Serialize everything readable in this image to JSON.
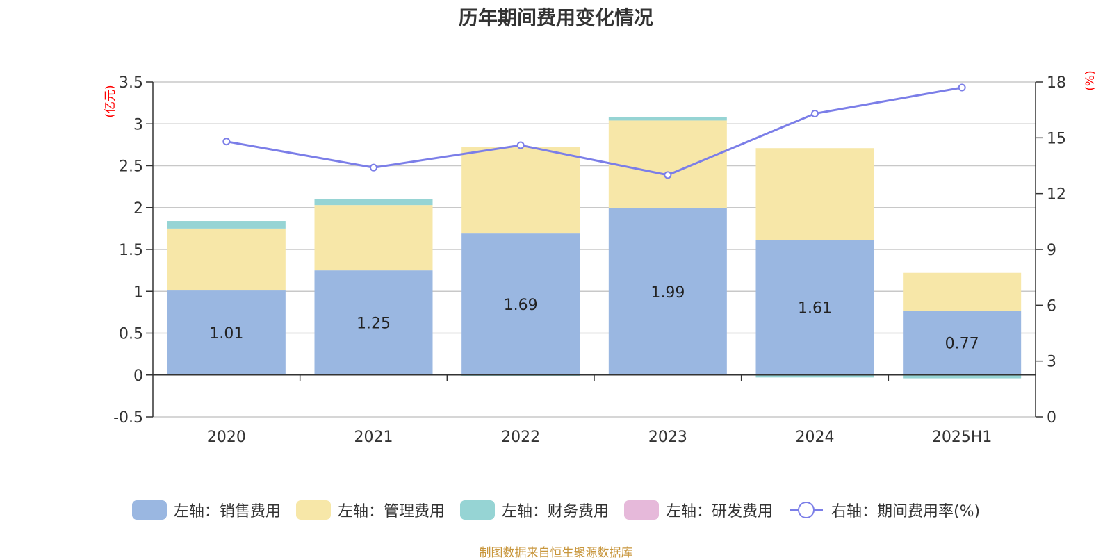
{
  "title": "历年期间费用变化情况",
  "source_note": "制图数据来自恒生聚源数据库",
  "colors": {
    "sales": "#9ab7e1",
    "admin": "#f7e7a8",
    "finance": "#96d4d4",
    "rnd": "#e6b9da",
    "rate_line": "#7b7ee8",
    "unit_label": "#ff0000",
    "grid": "#c8c8c8",
    "axis": "#333333"
  },
  "legend": [
    {
      "label": "左轴：销售费用",
      "swatch": "sales"
    },
    {
      "label": "左轴：管理费用",
      "swatch": "admin"
    },
    {
      "label": "左轴：财务费用",
      "swatch": "finance"
    },
    {
      "label": "左轴：研发费用",
      "swatch": "rnd"
    },
    {
      "label": "右轴：期间费用率(%)",
      "swatch": "rate_line"
    }
  ],
  "chart_data": {
    "type": "bar",
    "stacked": true,
    "categories": [
      "2020",
      "2021",
      "2022",
      "2023",
      "2024",
      "2025H1"
    ],
    "left_axis": {
      "unit": "(亿元)",
      "ylim": [
        -0.5,
        3.5
      ],
      "ticks": [
        "-0.5",
        "0",
        "0.5",
        "1",
        "1.5",
        "2",
        "2.5",
        "3",
        "3.5"
      ]
    },
    "right_axis": {
      "unit": "(%)",
      "ylim": [
        0,
        18
      ],
      "ticks": [
        "0",
        "3",
        "6",
        "9",
        "12",
        "15",
        "18"
      ]
    },
    "series": [
      {
        "name": "左轴：销售费用",
        "axis": "left",
        "color_key": "sales",
        "values": [
          1.01,
          1.25,
          1.69,
          1.99,
          1.61,
          0.77
        ],
        "labels": [
          "1.01",
          "1.25",
          "1.69",
          "1.99",
          "1.61",
          "0.77"
        ]
      },
      {
        "name": "左轴：管理费用",
        "axis": "left",
        "color_key": "admin",
        "values": [
          0.74,
          0.78,
          1.03,
          1.05,
          1.1,
          0.45
        ]
      },
      {
        "name": "左轴：财务费用",
        "axis": "left",
        "color_key": "finance",
        "values": [
          0.09,
          0.07,
          -0.01,
          0.04,
          -0.03,
          -0.04
        ]
      },
      {
        "name": "左轴：研发费用",
        "axis": "left",
        "color_key": "rnd",
        "values": [
          0,
          0,
          0,
          0,
          0,
          0
        ]
      },
      {
        "name": "右轴：期间费用率(%)",
        "axis": "right",
        "type": "line",
        "color_key": "rate_line",
        "values": [
          14.8,
          13.4,
          14.6,
          13.0,
          16.3,
          17.7
        ]
      }
    ],
    "grid": true,
    "legend_position": "bottom"
  }
}
